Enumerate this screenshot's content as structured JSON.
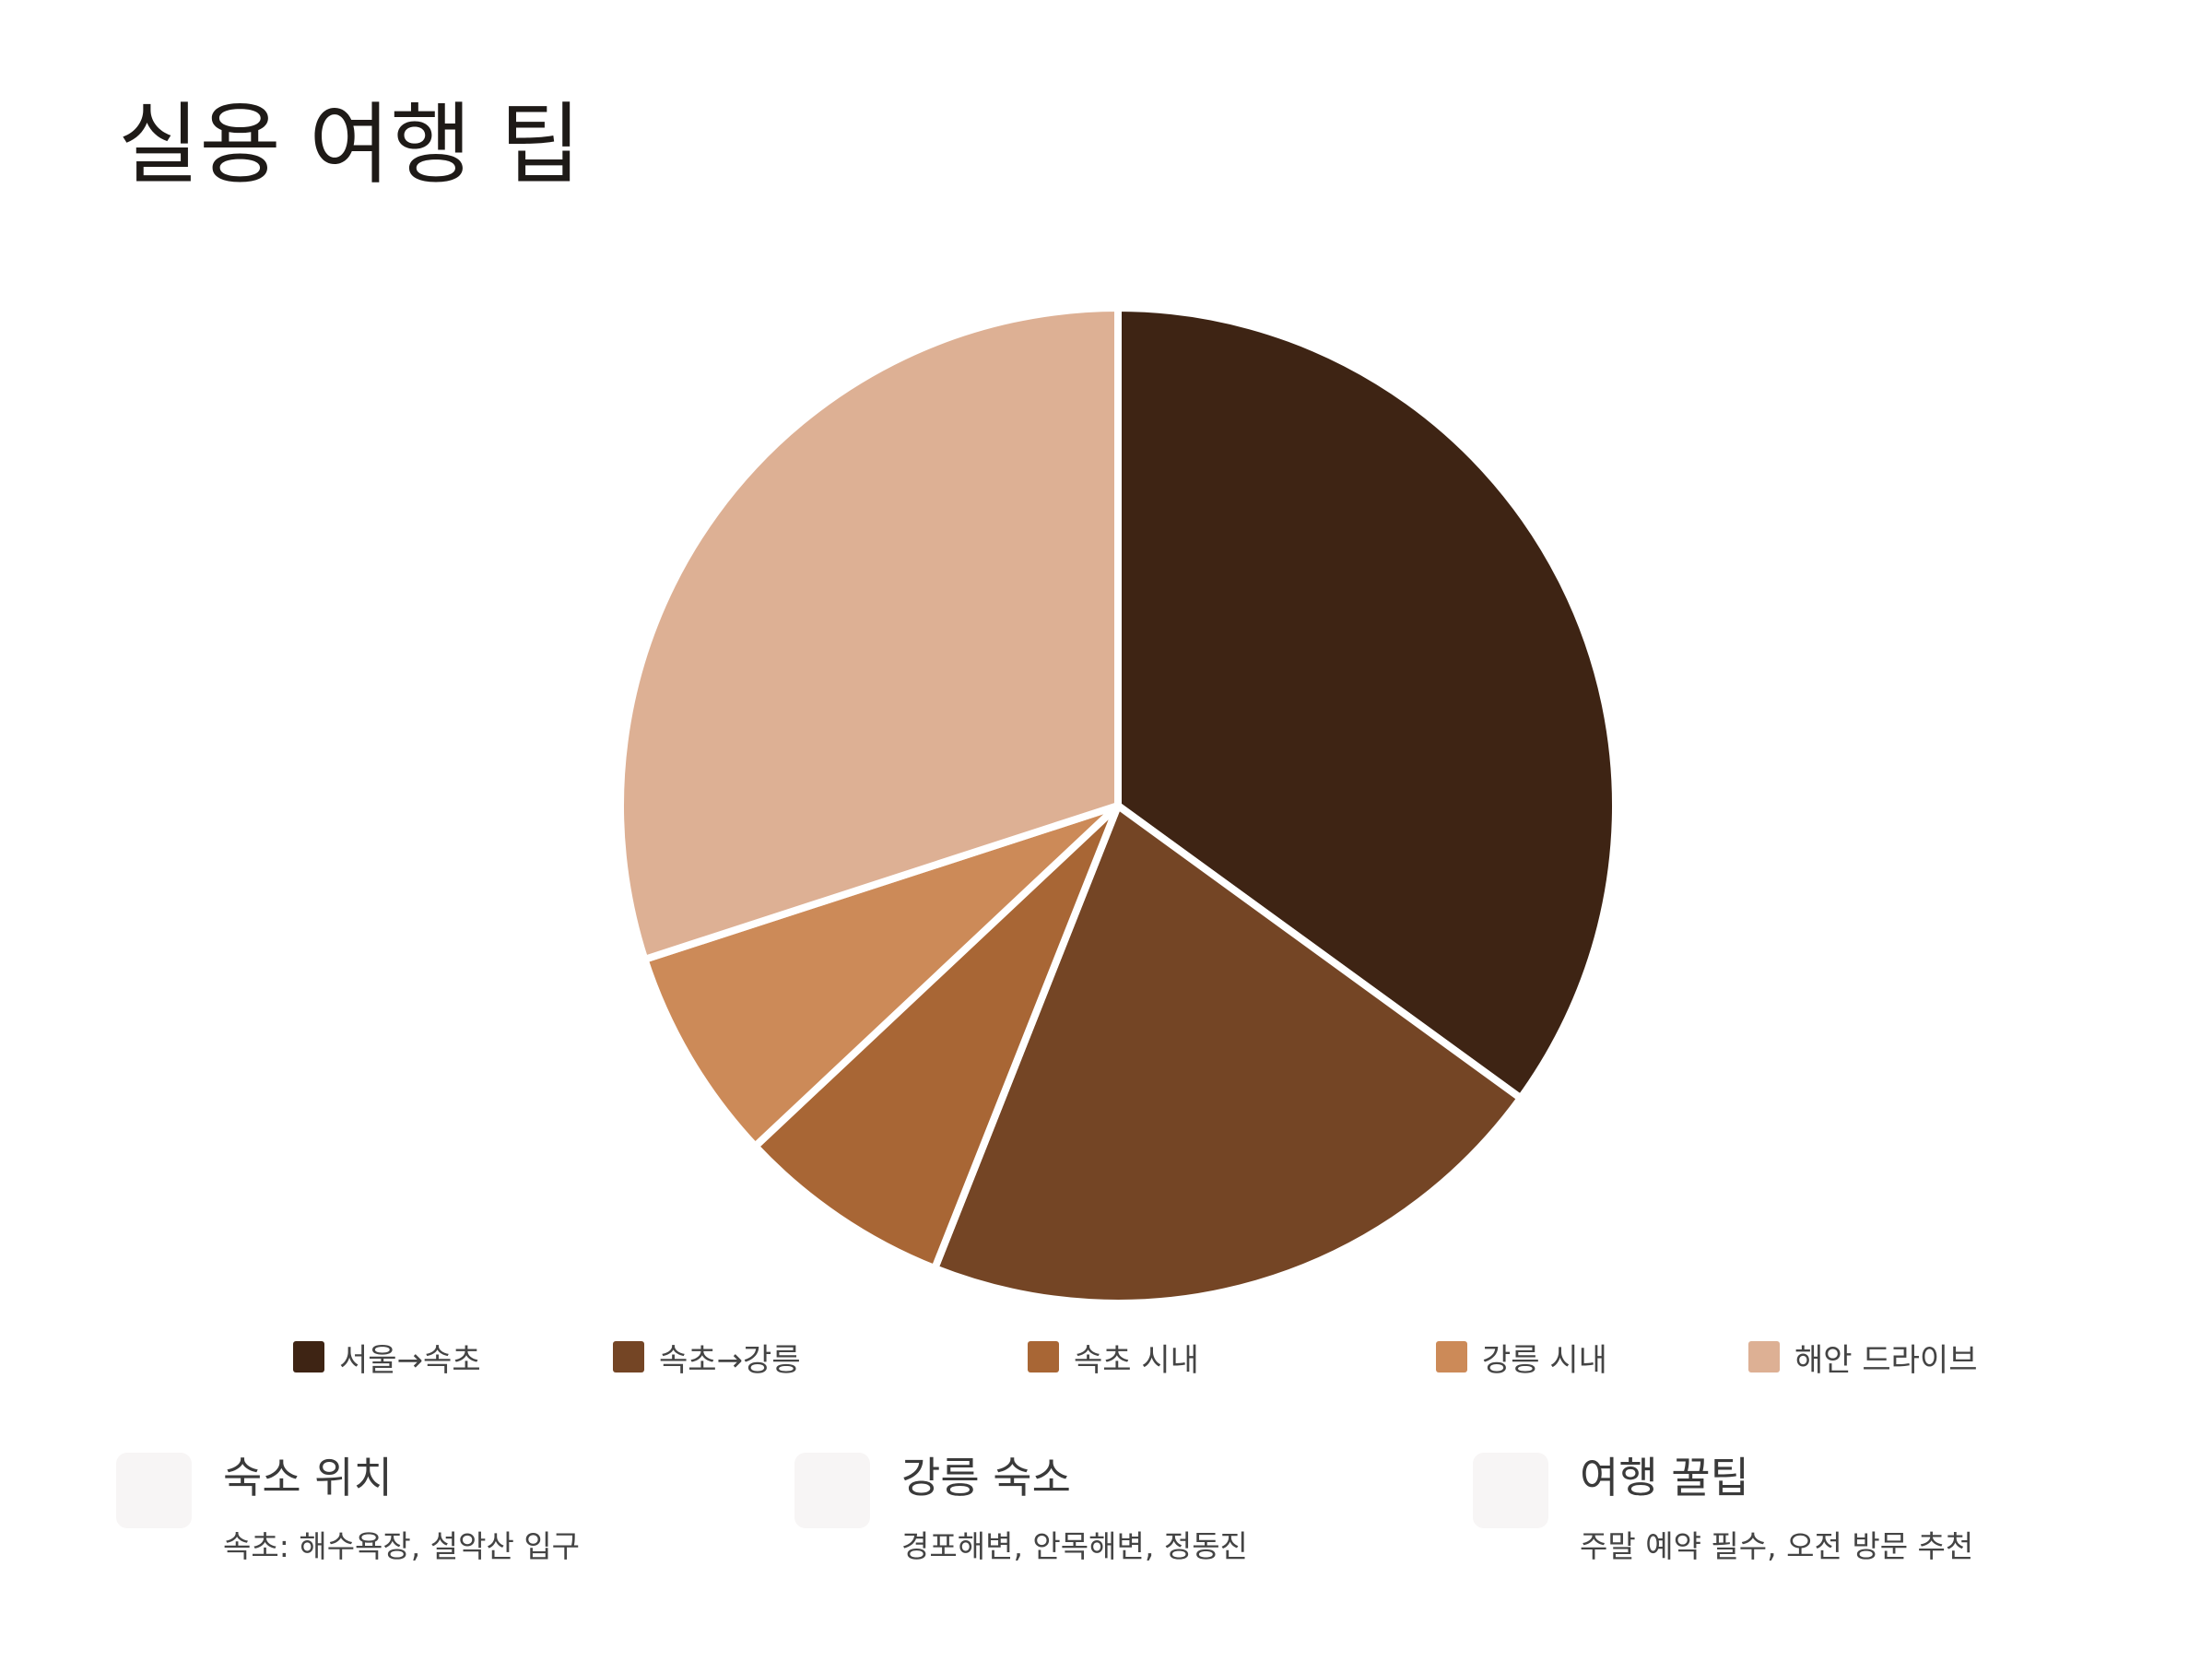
{
  "title": "실용 여행 팁",
  "chart_data": {
    "type": "pie",
    "title": "",
    "categories": [
      "서울→속초",
      "속초→강릉",
      "속초 시내",
      "강릉 시내",
      "해안 드라이브"
    ],
    "values": [
      35,
      21,
      7,
      7,
      30
    ],
    "colors": [
      "#3e2414",
      "#744525",
      "#a86635",
      "#cc8a58",
      "#ddb094"
    ],
    "legend_position": "bottom",
    "start_angle_deg": 0,
    "direction": "clockwise"
  },
  "cards": [
    {
      "title": "숙소 위치",
      "description": "속초: 해수욕장, 설악산 입구",
      "icon": "placeholder-icon"
    },
    {
      "title": "강릉 숙소",
      "description": "경포해변, 안목해변, 정동진",
      "icon": "placeholder-icon"
    },
    {
      "title": "여행 꿀팁",
      "description": "주말 예약 필수, 오전 방문 추천",
      "icon": "placeholder-icon"
    }
  ]
}
